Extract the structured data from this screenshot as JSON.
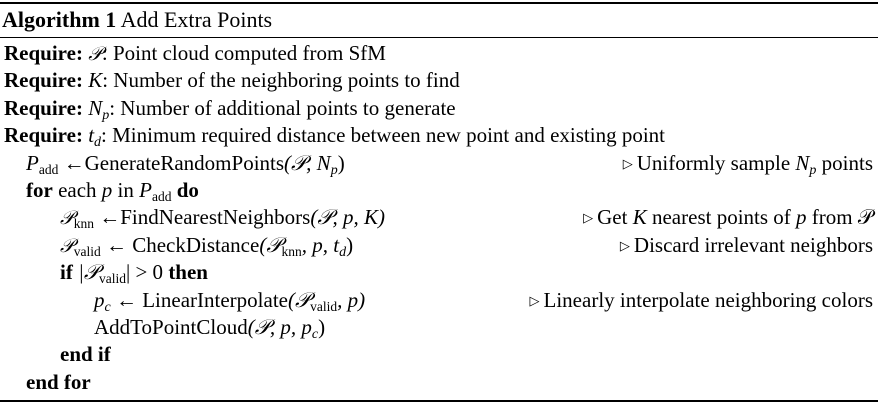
{
  "caption": {
    "number": "Algorithm 1",
    "title": "Add Extra Points"
  },
  "requires": [
    {
      "keyword": "Require:",
      "symbol": "𝒫",
      "sub": "",
      "desc": ": Point cloud computed from SfM"
    },
    {
      "keyword": "Require:",
      "symbol": "K",
      "sub": "",
      "desc": ": Number of the neighboring points to find"
    },
    {
      "keyword": "Require:",
      "symbol": "N",
      "sub": "p",
      "desc": ": Number of additional points to generate"
    },
    {
      "keyword": "Require:",
      "symbol": "t",
      "sub": "d",
      "desc": ": Minimum required distance between new point and existing point"
    }
  ],
  "steps": {
    "s1": {
      "lhs": "P",
      "lhs_sub": "add",
      "arrow": " ←",
      "func": "GenerateRandomPoints",
      "args": "(𝒫, N",
      "args_sub": "p",
      "close": ")",
      "comment_pre": "Uniformly sample ",
      "comment_sym": "N",
      "comment_sub": "p",
      "comment_post": " points"
    },
    "s2": {
      "kw_for": "for",
      "mid1": " each ",
      "var": "p",
      "mid2": " in ",
      "set": "P",
      "set_sub": "add",
      "kw_do": " do"
    },
    "s3": {
      "lhs": "𝒫",
      "lhs_sub": "knn",
      "arrow": " ←",
      "func": "FindNearestNeighbors",
      "args": "(𝒫, p, K)",
      "comment_pre": "Get ",
      "comment_sym": "K",
      "comment_mid": " nearest points of ",
      "comment_var": "p",
      "comment_post": " from 𝒫"
    },
    "s4": {
      "lhs": "𝒫",
      "lhs_sub": "valid",
      "arrow": " ← ",
      "func": "CheckDistance",
      "args_pre": "(𝒫",
      "args_sub1": "knn",
      "args_mid": ", p, t",
      "args_sub2": "d",
      "close": ")",
      "comment": "Discard irrelevant neighbors"
    },
    "s5": {
      "kw_if": "if",
      "cond_pre": " |𝒫",
      "cond_sub": "valid",
      "cond_post": "| > 0 ",
      "kw_then": "then"
    },
    "s6": {
      "lhs": "p",
      "lhs_sub": "c",
      "arrow": " ← ",
      "func": "LinearInterpolate",
      "args_pre": "(𝒫",
      "args_sub": "valid",
      "args_post": ", p)",
      "comment": "Linearly interpolate neighboring colors"
    },
    "s7": {
      "func": "AddToPointCloud",
      "args_pre": "(𝒫, p, p",
      "args_sub": "c",
      "close": ")"
    },
    "s8": {
      "kw": "end if"
    },
    "s9": {
      "kw": "end for"
    }
  },
  "comment_marker": "▷"
}
